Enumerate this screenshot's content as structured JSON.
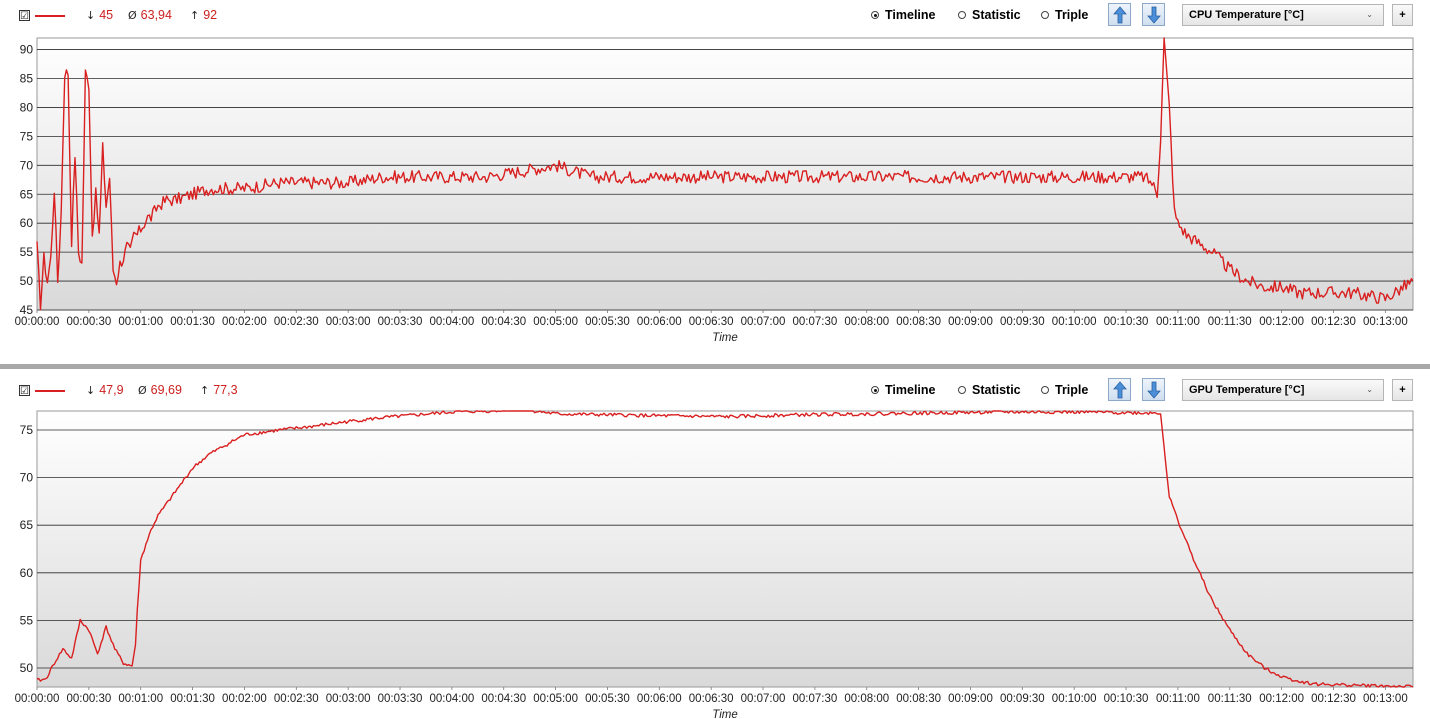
{
  "panels": [
    {
      "id": "cpu",
      "checkbox": "☑",
      "stats": {
        "min_glyph": "↓",
        "min": "45",
        "avg_glyph": "Ø",
        "avg": "63,94",
        "max_glyph": "↑",
        "max": "92"
      },
      "modes": [
        "Timeline",
        "Statistic",
        "Triple"
      ],
      "selected_mode": "Timeline",
      "sensor": "CPU Temperature [°C]",
      "plus_label": "+",
      "line_color": "#d91f1f"
    },
    {
      "id": "gpu",
      "checkbox": "☑",
      "stats": {
        "min_glyph": "↓",
        "min": "47,9",
        "avg_glyph": "Ø",
        "avg": "69,69",
        "max_glyph": "↑",
        "max": "77,3"
      },
      "modes": [
        "Timeline",
        "Statistic",
        "Triple"
      ],
      "selected_mode": "Timeline",
      "sensor": "GPU Temperature [°C]",
      "plus_label": "+",
      "line_color": "#d91f1f"
    }
  ],
  "chart_data": [
    {
      "type": "line",
      "title": "",
      "xlabel": "Time",
      "ylabel": "",
      "ylim": [
        45,
        92
      ],
      "yticks": [
        45,
        50,
        55,
        60,
        65,
        70,
        75,
        80,
        85,
        90
      ],
      "xlim": [
        0,
        796
      ],
      "xticks": [
        "00:00:00",
        "00:00:30",
        "00:01:00",
        "00:01:30",
        "00:02:00",
        "00:02:30",
        "00:03:00",
        "00:03:30",
        "00:04:00",
        "00:04:30",
        "00:05:00",
        "00:05:30",
        "00:06:00",
        "00:06:30",
        "00:07:00",
        "00:07:30",
        "00:08:00",
        "00:08:30",
        "00:09:00",
        "00:09:30",
        "00:10:00",
        "00:10:30",
        "00:11:00",
        "00:11:30",
        "00:12:00",
        "00:12:30",
        "00:13:00"
      ],
      "x_seconds": [
        0,
        2,
        4,
        6,
        8,
        10,
        12,
        14,
        16,
        18,
        20,
        22,
        24,
        26,
        28,
        30,
        32,
        34,
        36,
        38,
        40,
        42,
        44,
        46,
        48,
        50,
        52,
        54,
        56,
        58,
        60,
        62,
        64,
        66,
        68,
        70,
        75,
        80,
        90,
        100,
        110,
        120,
        140,
        160,
        180,
        200,
        220,
        240,
        260,
        280,
        300,
        320,
        340,
        360,
        380,
        400,
        420,
        440,
        460,
        480,
        500,
        520,
        540,
        560,
        580,
        600,
        620,
        640,
        645,
        648,
        650,
        652,
        655,
        658,
        660,
        665,
        670,
        680,
        690,
        700,
        710,
        720,
        730,
        740,
        760,
        780,
        796
      ],
      "series": [
        {
          "values": [
            56,
            46,
            54,
            50,
            54,
            66,
            50,
            62,
            86,
            86,
            57,
            72,
            55,
            53,
            86,
            84,
            58,
            65,
            58,
            73,
            63,
            68,
            52,
            50,
            53,
            54,
            56,
            55,
            58,
            58,
            59,
            60,
            61,
            61,
            62,
            63,
            64,
            64,
            65,
            66,
            66,
            66,
            67,
            67,
            67,
            68,
            68,
            68,
            68,
            69,
            70,
            68,
            68,
            68,
            68,
            68,
            68,
            68,
            68,
            68,
            68,
            68,
            68,
            68,
            68,
            68,
            68,
            68,
            67,
            65,
            75,
            92,
            80,
            62,
            60,
            58,
            57,
            55,
            52,
            50,
            49,
            49,
            48,
            48,
            48,
            47,
            50
          ]
        }
      ]
    },
    {
      "type": "line",
      "title": "",
      "xlabel": "Time",
      "ylabel": "",
      "ylim": [
        48,
        77
      ],
      "yticks": [
        50,
        55,
        60,
        65,
        70,
        75
      ],
      "xlim": [
        0,
        796
      ],
      "xticks": [
        "00:00:00",
        "00:00:30",
        "00:01:00",
        "00:01:30",
        "00:02:00",
        "00:02:30",
        "00:03:00",
        "00:03:30",
        "00:04:00",
        "00:04:30",
        "00:05:00",
        "00:05:30",
        "00:06:00",
        "00:06:30",
        "00:07:00",
        "00:07:30",
        "00:08:00",
        "00:08:30",
        "00:09:00",
        "00:09:30",
        "00:10:00",
        "00:10:30",
        "00:11:00",
        "00:11:30",
        "00:12:00",
        "00:12:30",
        "00:13:00"
      ],
      "x_seconds": [
        0,
        5,
        10,
        15,
        20,
        25,
        30,
        35,
        40,
        45,
        50,
        55,
        57,
        58,
        60,
        63,
        66,
        70,
        80,
        90,
        100,
        110,
        120,
        140,
        160,
        180,
        200,
        220,
        240,
        260,
        280,
        300,
        330,
        360,
        400,
        440,
        480,
        520,
        560,
        600,
        640,
        650,
        655,
        660,
        670,
        680,
        690,
        700,
        710,
        720,
        730,
        740,
        760,
        780,
        796
      ],
      "series": [
        {
          "values": [
            48.7,
            48.8,
            50.5,
            52,
            51,
            55,
            54,
            51.5,
            54.3,
            52,
            50.5,
            50.2,
            52.5,
            56,
            61.3,
            63,
            64.5,
            66,
            68.5,
            71,
            72.5,
            73.5,
            74.5,
            75,
            75.4,
            75.9,
            76.3,
            76.6,
            76.9,
            77,
            77.2,
            76.7,
            76.6,
            76.5,
            76.4,
            76.6,
            76.7,
            76.8,
            76.9,
            76.9,
            76.8,
            76.8,
            68,
            65.5,
            61,
            57,
            54,
            51.5,
            50,
            49.1,
            48.6,
            48.3,
            48.2,
            48.1,
            48.0
          ]
        }
      ]
    }
  ]
}
